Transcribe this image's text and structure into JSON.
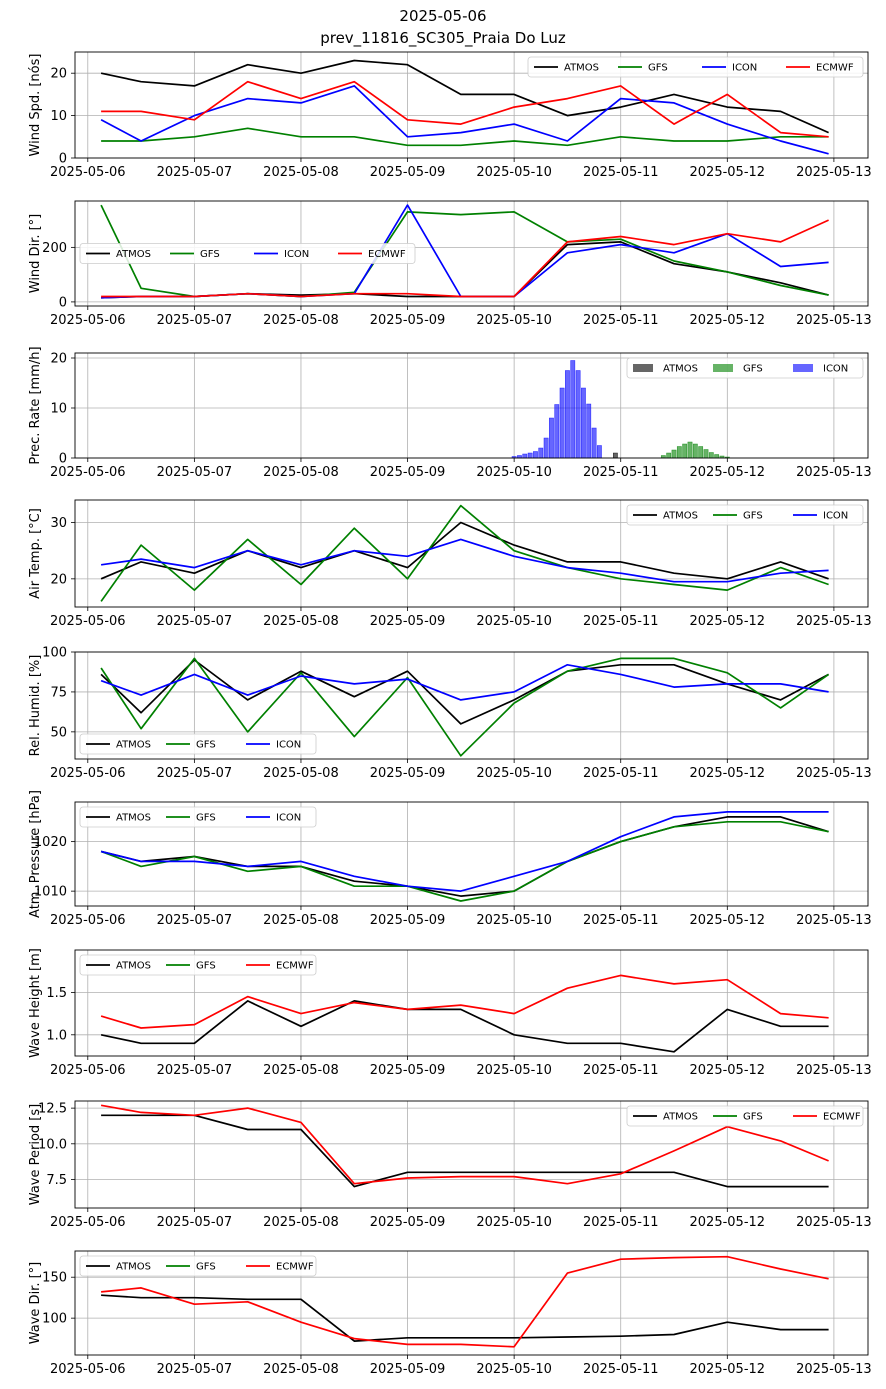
{
  "title": "2025-05-06",
  "subtitle": "prev_11816_SC305_Praia Do Luz",
  "colors": {
    "ATMOS": "#000000",
    "GFS": "#008000",
    "ICON": "#0000ff",
    "ECMWF": "#ff0000"
  },
  "x_ticks": [
    "2025-05-06",
    "2025-05-07",
    "2025-05-08",
    "2025-05-09",
    "2025-05-10",
    "2025-05-11",
    "2025-05-12",
    "2025-05-13"
  ],
  "chart_data": [
    {
      "type": "line",
      "ylabel": "Wind Spd. [nós]",
      "ylim": [
        0,
        25
      ],
      "yticks": [
        "0",
        "10",
        "20"
      ],
      "grid": true,
      "legend": "top-right",
      "legend_series": [
        "ATMOS",
        "GFS",
        "ICON",
        "ECMWF"
      ],
      "x": [
        6.125,
        6.5,
        7.0,
        7.5,
        8.0,
        8.5,
        9.0,
        9.5,
        10.0,
        10.5,
        11.0,
        11.5,
        12.0,
        12.5,
        12.95
      ],
      "series": [
        {
          "name": "ATMOS",
          "values": [
            20,
            18,
            17,
            22,
            20,
            23,
            22,
            15,
            15,
            10,
            12,
            15,
            12,
            11,
            6
          ]
        },
        {
          "name": "GFS",
          "values": [
            4,
            4,
            5,
            7,
            5,
            5,
            3,
            3,
            4,
            3,
            5,
            4,
            4,
            5,
            5
          ]
        },
        {
          "name": "ICON",
          "values": [
            9,
            4,
            10,
            14,
            13,
            17,
            5,
            6,
            8,
            4,
            14,
            13,
            8,
            4,
            1
          ]
        },
        {
          "name": "ECMWF",
          "values": [
            11,
            11,
            9,
            18,
            14,
            18,
            9,
            8,
            12,
            14,
            17,
            8,
            15,
            6,
            5
          ]
        }
      ]
    },
    {
      "type": "line",
      "ylabel": "Wind Dir. [°]",
      "ylim": [
        -15,
        370
      ],
      "yticks": [
        "0",
        "200"
      ],
      "grid": true,
      "legend": "center-left",
      "legend_series": [
        "ATMOS",
        "GFS",
        "ICON",
        "ECMWF"
      ],
      "x": [
        6.125,
        6.5,
        7.0,
        7.5,
        8.0,
        8.5,
        9.0,
        9.5,
        10.0,
        10.5,
        11.0,
        11.5,
        12.0,
        12.5,
        12.95
      ],
      "series": [
        {
          "name": "ATMOS",
          "values": [
            15,
            20,
            20,
            30,
            25,
            30,
            20,
            20,
            20,
            210,
            220,
            140,
            110,
            70,
            25
          ]
        },
        {
          "name": "GFS",
          "values": [
            355,
            50,
            20,
            30,
            20,
            35,
            330,
            320,
            330,
            220,
            230,
            150,
            110,
            60,
            25
          ]
        },
        {
          "name": "ICON",
          "values": [
            15,
            20,
            20,
            30,
            20,
            30,
            355,
            20,
            20,
            180,
            210,
            180,
            250,
            130,
            145
          ]
        },
        {
          "name": "ECMWF",
          "values": [
            20,
            20,
            20,
            30,
            20,
            30,
            30,
            20,
            20,
            220,
            240,
            210,
            250,
            220,
            300
          ]
        }
      ]
    },
    {
      "type": "bar",
      "ylabel": "Prec. Rate [mm/h]",
      "ylim": [
        0,
        21
      ],
      "yticks": [
        "0",
        "10",
        "20"
      ],
      "grid": true,
      "legend": "top-right",
      "legend_series": [
        "ATMOS",
        "GFS",
        "ICON"
      ],
      "series": [
        {
          "name": "ATMOS",
          "x": [
            10.95
          ],
          "values": [
            1.0
          ]
        },
        {
          "name": "GFS",
          "x": [
            11.4,
            11.45,
            11.5,
            11.55,
            11.6,
            11.65,
            11.7,
            11.75,
            11.8,
            11.85,
            11.9,
            11.95,
            12.0
          ],
          "values": [
            0.5,
            1.0,
            1.6,
            2.3,
            2.8,
            3.2,
            2.8,
            2.3,
            1.7,
            1.1,
            0.7,
            0.4,
            0.2
          ]
        },
        {
          "name": "ICON",
          "x": [
            10.0,
            10.05,
            10.1,
            10.15,
            10.2,
            10.25,
            10.3,
            10.35,
            10.4,
            10.45,
            10.5,
            10.55,
            10.6,
            10.65,
            10.7,
            10.75,
            10.8
          ],
          "values": [
            0.3,
            0.5,
            0.8,
            1.0,
            1.3,
            2.0,
            4.0,
            8.0,
            10.7,
            14.0,
            17.5,
            19.5,
            17.5,
            14.0,
            10.8,
            6.0,
            2.5
          ]
        }
      ]
    },
    {
      "type": "line",
      "ylabel": "Air Temp. [°C]",
      "ylim": [
        15,
        34
      ],
      "yticks": [
        "20",
        "30"
      ],
      "grid": true,
      "legend": "top-right",
      "legend_series": [
        "ATMOS",
        "GFS",
        "ICON"
      ],
      "x": [
        6.125,
        6.5,
        7.0,
        7.5,
        8.0,
        8.5,
        9.0,
        9.5,
        10.0,
        10.5,
        11.0,
        11.5,
        12.0,
        12.5,
        12.95
      ],
      "series": [
        {
          "name": "ATMOS",
          "values": [
            20,
            23,
            21,
            25,
            22,
            25,
            22,
            30,
            26,
            23,
            23,
            21,
            20,
            23,
            20
          ]
        },
        {
          "name": "GFS",
          "values": [
            16,
            26,
            18,
            27,
            19,
            29,
            20,
            33,
            25,
            22,
            20,
            19,
            18,
            22,
            19
          ]
        },
        {
          "name": "ICON",
          "values": [
            22.5,
            23.5,
            22,
            25,
            22.5,
            25,
            24,
            27,
            24,
            22,
            21,
            19.5,
            19.5,
            21,
            21.5
          ]
        }
      ]
    },
    {
      "type": "line",
      "ylabel": "Rel. Humid. [%]",
      "ylim": [
        33,
        100
      ],
      "yticks": [
        "50",
        "75",
        "100"
      ],
      "grid": true,
      "legend": "bottom-left",
      "legend_series": [
        "ATMOS",
        "GFS",
        "ICON"
      ],
      "x": [
        6.125,
        6.5,
        7.0,
        7.5,
        8.0,
        8.5,
        9.0,
        9.5,
        10.0,
        10.5,
        11.0,
        11.5,
        12.0,
        12.5,
        12.95
      ],
      "series": [
        {
          "name": "ATMOS",
          "values": [
            86,
            62,
            95,
            70,
            88,
            72,
            88,
            55,
            70,
            88,
            92,
            92,
            80,
            70,
            86
          ]
        },
        {
          "name": "GFS",
          "values": [
            90,
            52,
            96,
            50,
            87,
            47,
            84,
            35,
            68,
            88,
            96,
            96,
            87,
            65,
            86
          ]
        },
        {
          "name": "ICON",
          "values": [
            82,
            73,
            86,
            73,
            85,
            80,
            83,
            70,
            75,
            92,
            86,
            78,
            80,
            80,
            75
          ]
        }
      ]
    },
    {
      "type": "line",
      "ylabel": "Atm. Pressure [hPa]",
      "ylim": [
        1007,
        1028
      ],
      "yticks": [
        "1010",
        "1020"
      ],
      "grid": true,
      "legend": "top-left",
      "legend_series": [
        "ATMOS",
        "GFS",
        "ICON"
      ],
      "x": [
        6.125,
        6.5,
        7.0,
        7.5,
        8.0,
        8.5,
        9.0,
        9.5,
        10.0,
        10.5,
        11.0,
        11.5,
        12.0,
        12.5,
        12.95
      ],
      "series": [
        {
          "name": "ATMOS",
          "values": [
            1018,
            1016,
            1017,
            1015,
            1015,
            1012,
            1011,
            1009,
            1010,
            1016,
            1020,
            1023,
            1025,
            1025,
            1022
          ]
        },
        {
          "name": "GFS",
          "values": [
            1018,
            1015,
            1017,
            1014,
            1015,
            1011,
            1011,
            1008,
            1010,
            1016,
            1020,
            1023,
            1024,
            1024,
            1022
          ]
        },
        {
          "name": "ICON",
          "values": [
            1018,
            1016,
            1016,
            1015,
            1016,
            1013,
            1011,
            1010,
            1013,
            1016,
            1021,
            1025,
            1026,
            1026,
            1026
          ]
        }
      ]
    },
    {
      "type": "line",
      "ylabel": "Wave Height [m]",
      "ylim": [
        0.75,
        2.0
      ],
      "yticks": [
        "1.0",
        "1.5"
      ],
      "grid": true,
      "legend": "top-left",
      "legend_series": [
        "ATMOS",
        "GFS",
        "ECMWF"
      ],
      "x": [
        6.125,
        6.5,
        7.0,
        7.5,
        8.0,
        8.5,
        9.0,
        9.5,
        10.0,
        10.5,
        11.0,
        11.5,
        12.0,
        12.5,
        12.95
      ],
      "series": [
        {
          "name": "ATMOS",
          "values": [
            1.0,
            0.9,
            0.9,
            1.4,
            1.1,
            1.4,
            1.3,
            1.3,
            1.0,
            0.9,
            0.9,
            0.8,
            1.3,
            1.1,
            1.1
          ]
        },
        {
          "name": "ECMWF",
          "values": [
            1.22,
            1.08,
            1.12,
            1.45,
            1.25,
            1.38,
            1.3,
            1.35,
            1.25,
            1.55,
            1.7,
            1.6,
            1.65,
            1.25,
            1.2
          ]
        }
      ]
    },
    {
      "type": "line",
      "ylabel": "Wave Period [s]",
      "ylim": [
        5.5,
        13
      ],
      "yticks": [
        "7.5",
        "10.0",
        "12.5"
      ],
      "grid": true,
      "legend": "top-right",
      "legend_series": [
        "ATMOS",
        "GFS",
        "ECMWF"
      ],
      "x": [
        6.125,
        6.5,
        7.0,
        7.5,
        8.0,
        8.5,
        9.0,
        9.5,
        10.0,
        10.5,
        11.0,
        11.5,
        12.0,
        12.5,
        12.95
      ],
      "series": [
        {
          "name": "ATMOS",
          "values": [
            12,
            12,
            12,
            11,
            11,
            7,
            8,
            8,
            8,
            8,
            8,
            8,
            7,
            7,
            7
          ]
        },
        {
          "name": "ECMWF",
          "values": [
            12.7,
            12.2,
            12,
            12.5,
            11.5,
            7.2,
            7.6,
            7.7,
            7.7,
            7.2,
            7.9,
            9.5,
            11.2,
            10.2,
            8.8
          ]
        }
      ]
    },
    {
      "type": "line",
      "ylabel": "Wave Dir. [°]",
      "ylim": [
        55,
        182
      ],
      "yticks": [
        "100",
        "150"
      ],
      "grid": true,
      "legend": "top-left",
      "legend_series": [
        "ATMOS",
        "GFS",
        "ECMWF"
      ],
      "x": [
        6.125,
        6.5,
        7.0,
        7.5,
        8.0,
        8.5,
        9.0,
        9.5,
        10.0,
        10.5,
        11.0,
        11.5,
        12.0,
        12.5,
        12.95
      ],
      "series": [
        {
          "name": "ATMOS",
          "values": [
            128,
            125,
            125,
            123,
            123,
            72,
            76,
            76,
            76,
            77,
            78,
            80,
            95,
            86,
            86
          ]
        },
        {
          "name": "ECMWF",
          "values": [
            132,
            137,
            117,
            120,
            95,
            75,
            68,
            68,
            65,
            155,
            172,
            174,
            175,
            160,
            148
          ]
        }
      ]
    }
  ]
}
